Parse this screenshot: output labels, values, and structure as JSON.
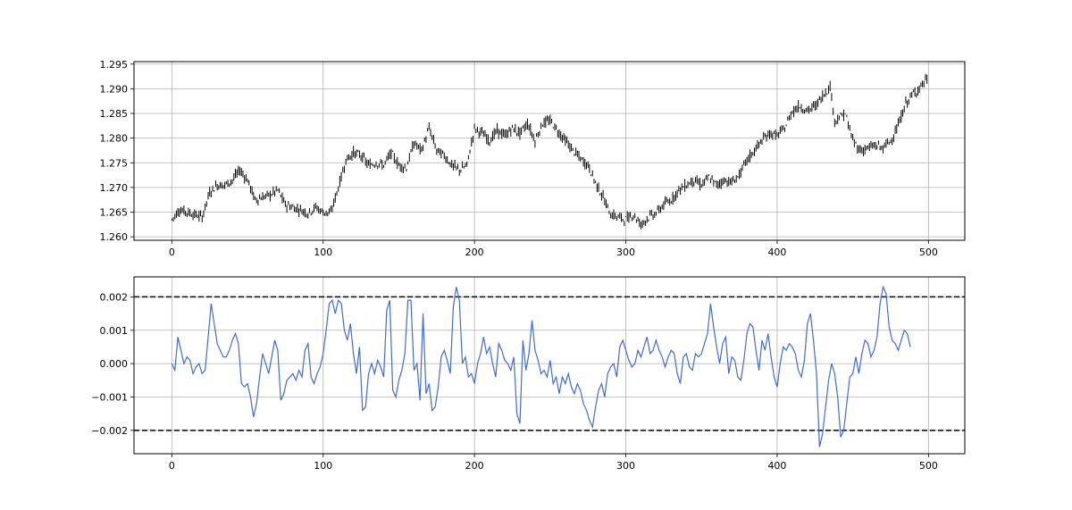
{
  "chart_data": [
    {
      "type": "line",
      "style": "candlestick",
      "title": "",
      "xlabel": "",
      "ylabel": "",
      "xlim": [
        -25,
        524
      ],
      "ylim": [
        1.2593,
        1.2955
      ],
      "x_ticks": [
        0,
        100,
        200,
        300,
        400,
        500
      ],
      "y_ticks": [
        1.26,
        1.265,
        1.27,
        1.275,
        1.28,
        1.285,
        1.29,
        1.295
      ],
      "y_tick_labels": [
        "1.260",
        "1.265",
        "1.270",
        "1.275",
        "1.280",
        "1.285",
        "1.290",
        "1.295"
      ],
      "grid": true,
      "color": "#000000",
      "n_points": 500,
      "close_anchors": [
        [
          0,
          1.2635
        ],
        [
          5,
          1.2655
        ],
        [
          10,
          1.265
        ],
        [
          15,
          1.2645
        ],
        [
          20,
          1.264
        ],
        [
          25,
          1.269
        ],
        [
          30,
          1.2705
        ],
        [
          35,
          1.2705
        ],
        [
          40,
          1.2715
        ],
        [
          45,
          1.2735
        ],
        [
          50,
          1.2715
        ],
        [
          55,
          1.2675
        ],
        [
          60,
          1.268
        ],
        [
          65,
          1.2685
        ],
        [
          70,
          1.2695
        ],
        [
          75,
          1.2665
        ],
        [
          80,
          1.266
        ],
        [
          85,
          1.2655
        ],
        [
          90,
          1.2648
        ],
        [
          95,
          1.266
        ],
        [
          100,
          1.265
        ],
        [
          105,
          1.2648
        ],
        [
          110,
          1.27
        ],
        [
          115,
          1.2755
        ],
        [
          120,
          1.277
        ],
        [
          125,
          1.2765
        ],
        [
          130,
          1.2745
        ],
        [
          135,
          1.275
        ],
        [
          140,
          1.2745
        ],
        [
          145,
          1.277
        ],
        [
          150,
          1.2745
        ],
        [
          155,
          1.274
        ],
        [
          160,
          1.279
        ],
        [
          165,
          1.2775
        ],
        [
          170,
          1.282
        ],
        [
          175,
          1.2775
        ],
        [
          180,
          1.2765
        ],
        [
          185,
          1.2745
        ],
        [
          190,
          1.2735
        ],
        [
          195,
          1.2745
        ],
        [
          200,
          1.282
        ],
        [
          205,
          1.281
        ],
        [
          210,
          1.2795
        ],
        [
          215,
          1.2815
        ],
        [
          220,
          1.2805
        ],
        [
          225,
          1.282
        ],
        [
          230,
          1.281
        ],
        [
          235,
          1.283
        ],
        [
          240,
          1.2795
        ],
        [
          245,
          1.283
        ],
        [
          250,
          1.2835
        ],
        [
          255,
          1.2815
        ],
        [
          260,
          1.2795
        ],
        [
          265,
          1.2775
        ],
        [
          270,
          1.2758
        ],
        [
          275,
          1.2745
        ],
        [
          280,
          1.271
        ],
        [
          285,
          1.268
        ],
        [
          290,
          1.2645
        ],
        [
          295,
          1.264
        ],
        [
          300,
          1.2635
        ],
        [
          305,
          1.2645
        ],
        [
          310,
          1.2625
        ],
        [
          315,
          1.264
        ],
        [
          320,
          1.2648
        ],
        [
          325,
          1.2665
        ],
        [
          330,
          1.2675
        ],
        [
          335,
          1.2695
        ],
        [
          340,
          1.2705
        ],
        [
          345,
          1.2715
        ],
        [
          350,
          1.2705
        ],
        [
          355,
          1.272
        ],
        [
          360,
          1.2705
        ],
        [
          365,
          1.2715
        ],
        [
          370,
          1.271
        ],
        [
          375,
          1.2725
        ],
        [
          380,
          1.2755
        ],
        [
          385,
          1.2775
        ],
        [
          390,
          1.2795
        ],
        [
          395,
          1.281
        ],
        [
          400,
          1.2805
        ],
        [
          405,
          1.282
        ],
        [
          410,
          1.2855
        ],
        [
          415,
          1.2865
        ],
        [
          420,
          1.2855
        ],
        [
          425,
          1.2865
        ],
        [
          430,
          1.2885
        ],
        [
          435,
          1.2905
        ],
        [
          438,
          1.2835
        ],
        [
          445,
          1.285
        ],
        [
          450,
          1.2795
        ],
        [
          455,
          1.2775
        ],
        [
          460,
          1.278
        ],
        [
          465,
          1.2785
        ],
        [
          470,
          1.278
        ],
        [
          475,
          1.2795
        ],
        [
          480,
          1.2825
        ],
        [
          485,
          1.287
        ],
        [
          490,
          1.289
        ],
        [
          495,
          1.2905
        ],
        [
          499,
          1.292
        ]
      ]
    },
    {
      "type": "line",
      "title": "",
      "xlabel": "",
      "ylabel": "",
      "xlim": [
        -25,
        524
      ],
      "ylim": [
        -0.0027,
        0.0026
      ],
      "x_ticks": [
        0,
        100,
        200,
        300,
        400,
        500
      ],
      "y_ticks": [
        -0.002,
        -0.001,
        0.0,
        0.001,
        0.002
      ],
      "y_tick_labels": [
        "−0.002",
        "−0.001",
        "0.000",
        "0.001",
        "0.002"
      ],
      "grid": true,
      "color": "#4169e1",
      "threshold_lines": [
        {
          "y": 0.002,
          "style": "dashed",
          "color": "#000000"
        },
        {
          "y": -0.002,
          "style": "dashed",
          "color": "#000000"
        }
      ],
      "anchors": [
        [
          0,
          0.0
        ],
        [
          2,
          -0.0002
        ],
        [
          4,
          0.0008
        ],
        [
          6,
          0.0004
        ],
        [
          8,
          0.0
        ],
        [
          10,
          0.0002
        ],
        [
          12,
          0.0001
        ],
        [
          14,
          -0.0003
        ],
        [
          16,
          -0.0001
        ],
        [
          18,
          0.0
        ],
        [
          20,
          -0.0003
        ],
        [
          22,
          -0.0002
        ],
        [
          24,
          0.0008
        ],
        [
          26,
          0.0018
        ],
        [
          28,
          0.0012
        ],
        [
          30,
          0.0006
        ],
        [
          32,
          0.0004
        ],
        [
          34,
          0.0002
        ],
        [
          36,
          0.0002
        ],
        [
          38,
          0.0004
        ],
        [
          40,
          0.0007
        ],
        [
          42,
          0.0009
        ],
        [
          44,
          0.0006
        ],
        [
          46,
          -0.0006
        ],
        [
          48,
          -0.0007
        ],
        [
          50,
          -0.0006
        ],
        [
          52,
          -0.001
        ],
        [
          54,
          -0.0016
        ],
        [
          56,
          -0.0012
        ],
        [
          58,
          -0.0004
        ],
        [
          60,
          0.0003
        ],
        [
          62,
          0.0
        ],
        [
          64,
          -0.0003
        ],
        [
          66,
          0.0002
        ],
        [
          68,
          0.0007
        ],
        [
          70,
          0.0004
        ],
        [
          72,
          -0.0011
        ],
        [
          74,
          -0.0009
        ],
        [
          76,
          -0.0005
        ],
        [
          78,
          -0.0004
        ],
        [
          80,
          -0.0003
        ],
        [
          82,
          -0.0005
        ],
        [
          84,
          -0.0002
        ],
        [
          86,
          -0.0004
        ],
        [
          88,
          0.0004
        ],
        [
          90,
          0.0006
        ],
        [
          92,
          -0.0004
        ],
        [
          94,
          -0.0006
        ],
        [
          96,
          -0.0003
        ],
        [
          98,
          -0.0001
        ],
        [
          100,
          0.0003
        ],
        [
          102,
          0.001
        ],
        [
          104,
          0.0018
        ],
        [
          106,
          0.0019
        ],
        [
          108,
          0.0015
        ],
        [
          110,
          0.0019
        ],
        [
          112,
          0.0018
        ],
        [
          114,
          0.001
        ],
        [
          116,
          0.0007
        ],
        [
          118,
          0.0012
        ],
        [
          120,
          0.0003
        ],
        [
          122,
          -0.0003
        ],
        [
          124,
          0.0005
        ],
        [
          126,
          -0.0014
        ],
        [
          128,
          -0.0013
        ],
        [
          130,
          -0.0003
        ],
        [
          132,
          0.0
        ],
        [
          134,
          -0.0003
        ],
        [
          136,
          0.0001
        ],
        [
          138,
          -0.0001
        ],
        [
          140,
          -0.0004
        ],
        [
          142,
          0.0016
        ],
        [
          144,
          0.0019
        ],
        [
          146,
          -0.0008
        ],
        [
          148,
          -0.001
        ],
        [
          150,
          -0.0005
        ],
        [
          152,
          -0.0002
        ],
        [
          154,
          0.0003
        ],
        [
          156,
          0.0019
        ],
        [
          158,
          0.0019
        ],
        [
          160,
          -0.0002
        ],
        [
          162,
          0.0
        ],
        [
          164,
          -0.0011
        ],
        [
          166,
          0.0015
        ],
        [
          168,
          -0.0009
        ],
        [
          170,
          -0.0006
        ],
        [
          172,
          -0.0014
        ],
        [
          174,
          -0.0013
        ],
        [
          176,
          -0.0007
        ],
        [
          178,
          0.0002
        ],
        [
          180,
          0.0004
        ],
        [
          182,
          0.0001
        ],
        [
          184,
          -0.0003
        ],
        [
          186,
          0.0017
        ],
        [
          188,
          0.0023
        ],
        [
          190,
          0.0019
        ],
        [
          192,
          0.0
        ],
        [
          194,
          0.0002
        ],
        [
          196,
          -0.0004
        ],
        [
          198,
          -0.0003
        ],
        [
          200,
          -0.0006
        ],
        [
          202,
          0.0
        ],
        [
          204,
          0.0003
        ],
        [
          206,
          0.0008
        ],
        [
          208,
          0.0003
        ],
        [
          210,
          0.0005
        ],
        [
          212,
          0.0
        ],
        [
          214,
          -0.0004
        ],
        [
          216,
          0.0006
        ],
        [
          218,
          0.0004
        ],
        [
          220,
          0.0001
        ],
        [
          222,
          0.0
        ],
        [
          224,
          -0.0002
        ],
        [
          226,
          0.0002
        ],
        [
          228,
          -0.0015
        ],
        [
          230,
          -0.0018
        ],
        [
          232,
          0.0007
        ],
        [
          234,
          -0.0002
        ],
        [
          236,
          0.0003
        ],
        [
          238,
          0.0013
        ],
        [
          240,
          0.0004
        ],
        [
          242,
          0.0001
        ],
        [
          244,
          -0.0003
        ],
        [
          246,
          -0.0002
        ],
        [
          248,
          -0.0004
        ],
        [
          250,
          0.0001
        ],
        [
          252,
          -0.0006
        ],
        [
          254,
          -0.0004
        ],
        [
          256,
          -0.0009
        ],
        [
          258,
          -0.0004
        ],
        [
          260,
          -0.0006
        ],
        [
          262,
          -0.0003
        ],
        [
          264,
          -0.0007
        ],
        [
          266,
          -0.0009
        ],
        [
          268,
          -0.0006
        ],
        [
          270,
          -0.0008
        ],
        [
          272,
          -0.0012
        ],
        [
          274,
          -0.0014
        ],
        [
          276,
          -0.0017
        ],
        [
          278,
          -0.0019
        ],
        [
          280,
          -0.0013
        ],
        [
          282,
          -0.0008
        ],
        [
          284,
          -0.0006
        ],
        [
          286,
          -0.001
        ],
        [
          288,
          -0.0003
        ],
        [
          290,
          -0.0001
        ],
        [
          292,
          0.0
        ],
        [
          294,
          -0.0004
        ],
        [
          296,
          0.0005
        ],
        [
          298,
          0.0007
        ],
        [
          300,
          0.0004
        ],
        [
          302,
          0.0001
        ],
        [
          304,
          -0.0001
        ],
        [
          306,
          0.0
        ],
        [
          308,
          0.0004
        ],
        [
          310,
          0.0002
        ],
        [
          312,
          0.0005
        ],
        [
          314,
          0.0008
        ],
        [
          316,
          0.0003
        ],
        [
          318,
          0.0004
        ],
        [
          320,
          0.0007
        ],
        [
          322,
          0.0004
        ],
        [
          324,
          0.0002
        ],
        [
          326,
          -0.0001
        ],
        [
          328,
          0.0002
        ],
        [
          330,
          0.0004
        ],
        [
          332,
          0.0003
        ],
        [
          334,
          -0.0003
        ],
        [
          336,
          -0.0006
        ],
        [
          338,
          0.0002
        ],
        [
          340,
          0.0003
        ],
        [
          342,
          -0.0001
        ],
        [
          344,
          -0.0002
        ],
        [
          346,
          0.0003
        ],
        [
          348,
          0.0002
        ],
        [
          350,
          0.0003
        ],
        [
          352,
          0.0006
        ],
        [
          354,
          0.0009
        ],
        [
          356,
          0.0018
        ],
        [
          358,
          0.0011
        ],
        [
          360,
          0.0005
        ],
        [
          362,
          0.0
        ],
        [
          364,
          0.0006
        ],
        [
          366,
          0.0008
        ],
        [
          368,
          -0.0003
        ],
        [
          370,
          0.0002
        ],
        [
          372,
          0.0001
        ],
        [
          374,
          -0.0004
        ],
        [
          376,
          -0.0005
        ],
        [
          378,
          0.0001
        ],
        [
          380,
          0.0009
        ],
        [
          382,
          0.0012
        ],
        [
          384,
          0.0011
        ],
        [
          386,
          0.0004
        ],
        [
          388,
          -0.0002
        ],
        [
          390,
          0.0007
        ],
        [
          392,
          0.0004
        ],
        [
          394,
          0.0009
        ],
        [
          396,
          0.0002
        ],
        [
          398,
          -0.0004
        ],
        [
          400,
          -0.0007
        ],
        [
          402,
          0.0
        ],
        [
          404,
          0.0005
        ],
        [
          406,
          0.0004
        ],
        [
          408,
          0.0006
        ],
        [
          410,
          0.0005
        ],
        [
          412,
          0.0003
        ],
        [
          414,
          -0.0002
        ],
        [
          416,
          -0.0004
        ],
        [
          418,
          0.0001
        ],
        [
          420,
          0.0012
        ],
        [
          422,
          0.0015
        ],
        [
          424,
          0.0007
        ],
        [
          426,
          -0.0003
        ],
        [
          428,
          -0.0025
        ],
        [
          430,
          -0.0021
        ],
        [
          432,
          -0.0013
        ],
        [
          434,
          -0.0005
        ],
        [
          436,
          0.0
        ],
        [
          438,
          -0.0003
        ],
        [
          440,
          -0.001
        ],
        [
          442,
          -0.0022
        ],
        [
          444,
          -0.002
        ],
        [
          446,
          -0.0012
        ],
        [
          448,
          -0.0004
        ],
        [
          450,
          -0.0003
        ],
        [
          452,
          0.0002
        ],
        [
          454,
          -0.0003
        ],
        [
          456,
          0.0003
        ],
        [
          458,
          0.0007
        ],
        [
          460,
          0.0006
        ],
        [
          462,
          0.0002
        ],
        [
          464,
          0.0004
        ],
        [
          466,
          0.0008
        ],
        [
          468,
          0.0018
        ],
        [
          470,
          0.0023
        ],
        [
          472,
          0.0021
        ],
        [
          474,
          0.0011
        ],
        [
          476,
          0.0007
        ],
        [
          478,
          0.0006
        ],
        [
          480,
          0.0004
        ],
        [
          482,
          0.0007
        ],
        [
          484,
          0.001
        ],
        [
          486,
          0.0009
        ],
        [
          488,
          0.0005
        ]
      ]
    }
  ]
}
